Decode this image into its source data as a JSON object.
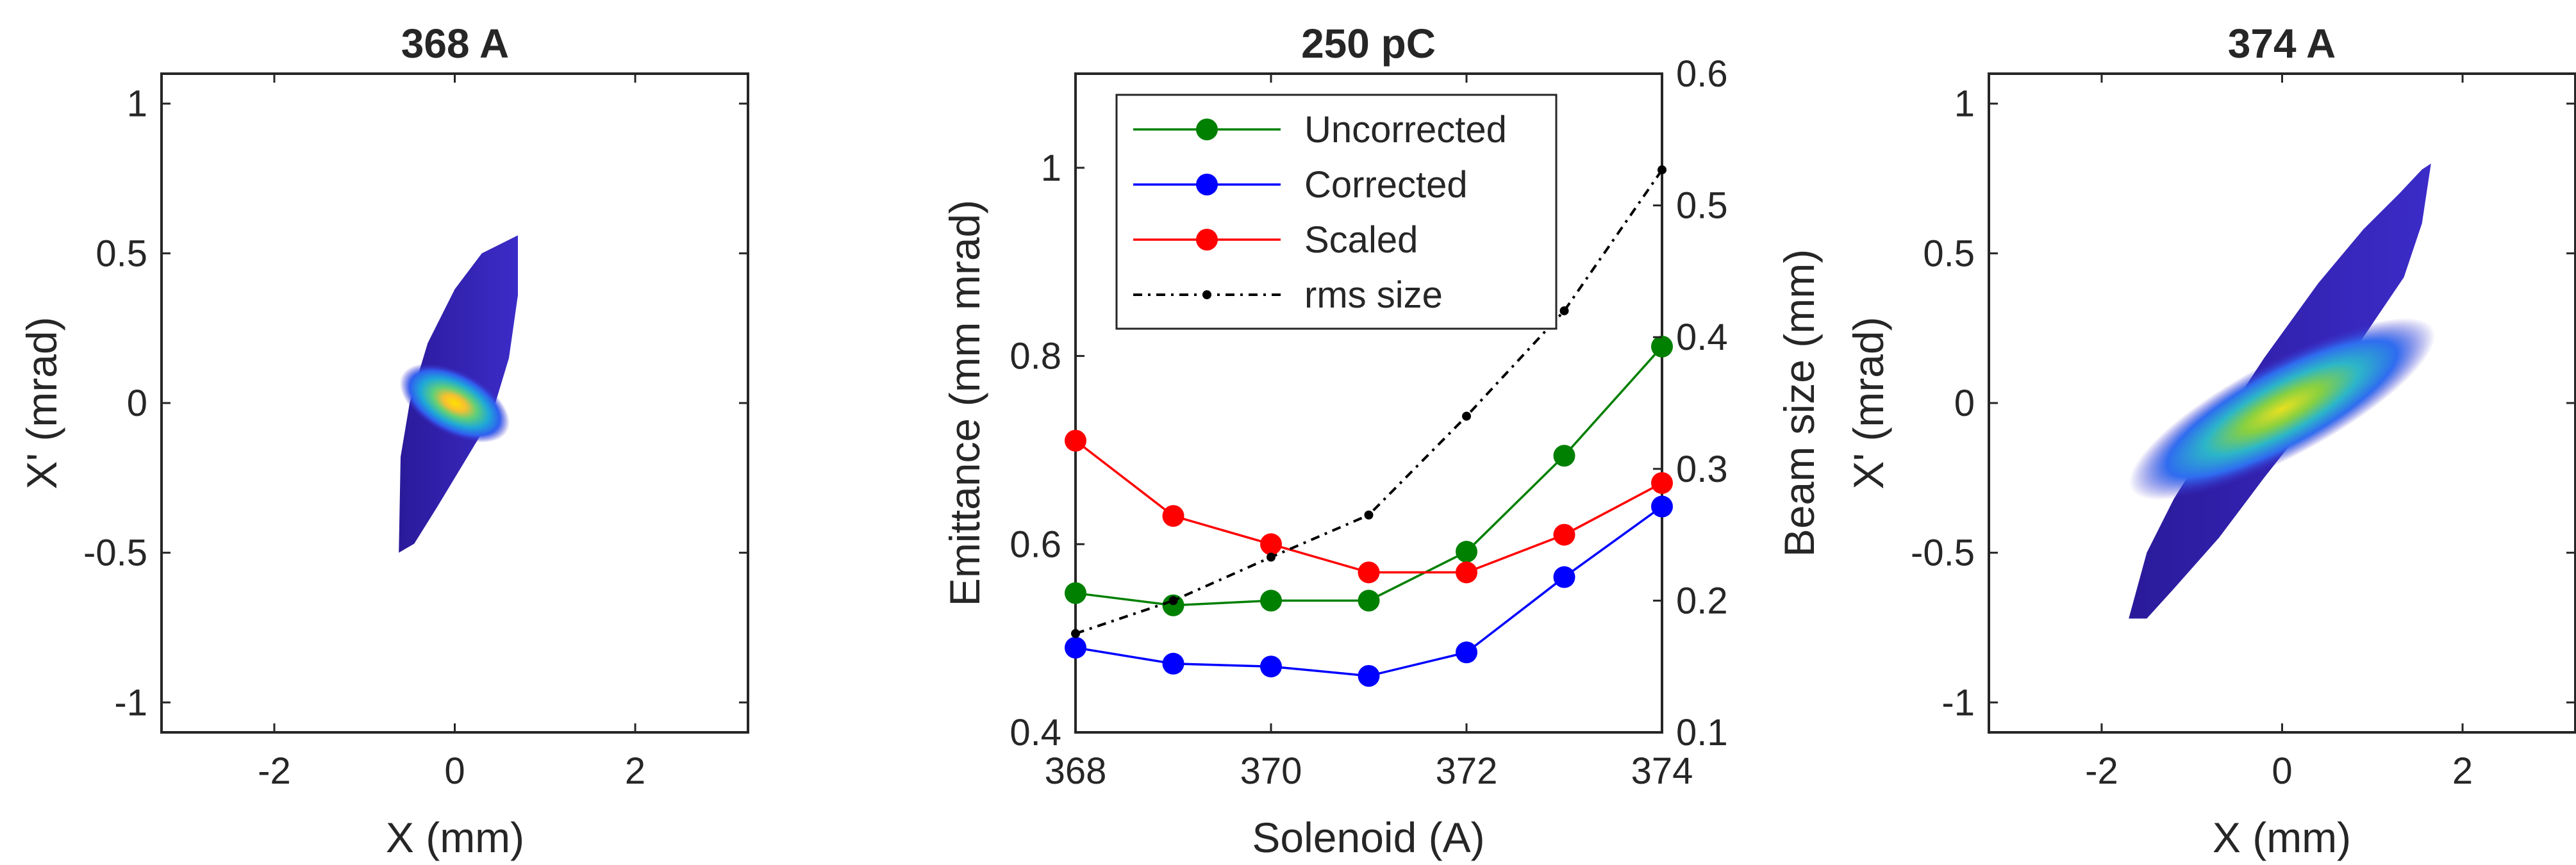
{
  "chart_data": [
    {
      "type": "heatmap",
      "title": "368 A",
      "xlabel": "X (mm)",
      "ylabel": "X' (mrad)",
      "xlim": [
        -3.25,
        3.25
      ],
      "ylim": [
        -1.1,
        1.1
      ],
      "xticks": [
        -2,
        0,
        2
      ],
      "xtick_labels": [
        "-2",
        "0",
        "2"
      ],
      "yticks": [
        -1,
        -0.5,
        0,
        0.5,
        1
      ],
      "ytick_labels": [
        "-1",
        "-0.5",
        "0",
        "0.5",
        "1"
      ],
      "distribution": {
        "outline": [
          [
            -0.62,
            -0.5
          ],
          [
            -0.6,
            -0.18
          ],
          [
            -0.5,
            0.0
          ],
          [
            -0.3,
            0.2
          ],
          [
            0.0,
            0.38
          ],
          [
            0.3,
            0.5
          ],
          [
            0.7,
            0.56
          ],
          [
            0.7,
            0.36
          ],
          [
            0.6,
            0.15
          ],
          [
            0.4,
            -0.05
          ],
          [
            0.1,
            -0.2
          ],
          [
            -0.2,
            -0.35
          ],
          [
            -0.45,
            -0.47
          ]
        ],
        "center": [
          0.0,
          0.0
        ],
        "core_width": 0.35,
        "core_height": 0.2,
        "tilt_deg": 62
      }
    },
    {
      "type": "line",
      "title": "250 pC",
      "xlabel": "Solenoid (A)",
      "ylabel": "Emittance (mm mrad)",
      "y2label": "Beam size (mm)",
      "xlim": [
        368,
        374
      ],
      "ylim": [
        0.4,
        1.1
      ],
      "y2lim": [
        0.1,
        0.6
      ],
      "xticks": [
        368,
        370,
        372,
        374
      ],
      "xtick_labels": [
        "368",
        "370",
        "372",
        "374"
      ],
      "yticks": [
        0.4,
        0.6,
        0.8,
        1.0
      ],
      "ytick_labels": [
        "0.4",
        "0.6",
        "0.8",
        "1"
      ],
      "y2ticks": [
        0.1,
        0.2,
        0.3,
        0.4,
        0.5,
        0.6
      ],
      "y2tick_labels": [
        "0.1",
        "0.2",
        "0.3",
        "0.4",
        "0.5",
        "0.6"
      ],
      "x": [
        368,
        369,
        370,
        371,
        372,
        373,
        374
      ],
      "series": [
        {
          "name": "Uncorrected",
          "color": "#008000",
          "axis": "left",
          "values": [
            0.548,
            0.535,
            0.54,
            0.54,
            0.592,
            0.694,
            0.81
          ]
        },
        {
          "name": "Corrected",
          "color": "#0000ff",
          "axis": "left",
          "values": [
            0.49,
            0.473,
            0.47,
            0.46,
            0.485,
            0.565,
            0.64
          ]
        },
        {
          "name": "Scaled",
          "color": "#ff0000",
          "axis": "left",
          "values": [
            0.71,
            0.63,
            0.6,
            0.57,
            0.57,
            0.61,
            0.665
          ]
        },
        {
          "name": "rms size",
          "color": "#000000",
          "axis": "right",
          "dashed": true,
          "values": [
            0.175,
            0.2,
            0.233,
            0.265,
            0.34,
            0.42,
            0.527
          ]
        }
      ],
      "legend": "top-left"
    },
    {
      "type": "heatmap",
      "title": "374 A",
      "xlabel": "X (mm)",
      "ylabel": "X' (mrad)",
      "xlim": [
        -3.25,
        3.25
      ],
      "ylim": [
        -1.1,
        1.1
      ],
      "xticks": [
        -2,
        0,
        2
      ],
      "xtick_labels": [
        "-2",
        "0",
        "2"
      ],
      "yticks": [
        -1,
        -0.5,
        0,
        0.5,
        1
      ],
      "ytick_labels": [
        "-1",
        "-0.5",
        "0",
        "0.5",
        "1"
      ],
      "distribution": {
        "outline": [
          [
            -1.7,
            -0.72
          ],
          [
            -1.5,
            -0.5
          ],
          [
            -1.2,
            -0.32
          ],
          [
            -0.7,
            -0.08
          ],
          [
            -0.2,
            0.15
          ],
          [
            0.4,
            0.4
          ],
          [
            0.9,
            0.58
          ],
          [
            1.3,
            0.7
          ],
          [
            1.55,
            0.78
          ],
          [
            1.65,
            0.8
          ],
          [
            1.55,
            0.6
          ],
          [
            1.35,
            0.42
          ],
          [
            0.9,
            0.22
          ],
          [
            0.4,
            -0.02
          ],
          [
            -0.2,
            -0.25
          ],
          [
            -0.7,
            -0.45
          ],
          [
            -1.2,
            -0.62
          ],
          [
            -1.5,
            -0.72
          ]
        ],
        "center": [
          0.0,
          -0.02
        ],
        "core_width": 1.9,
        "core_height": 0.16,
        "tilt_deg": 28
      }
    }
  ]
}
